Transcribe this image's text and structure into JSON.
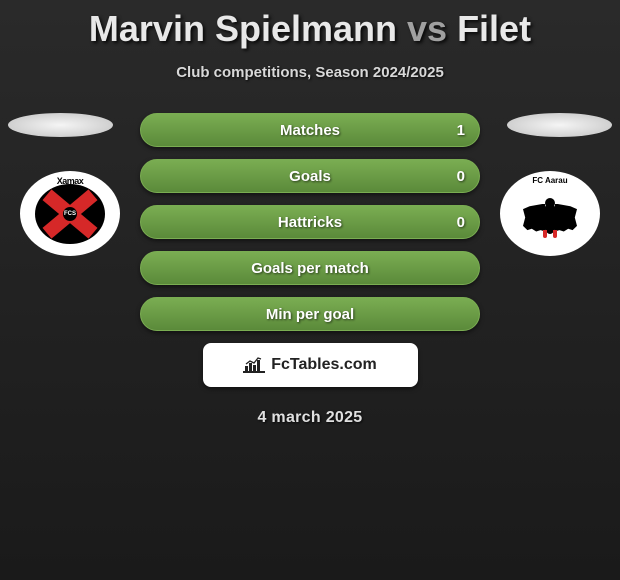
{
  "header": {
    "player1": "Marvin Spielmann",
    "vs": "vs",
    "player2": "Filet",
    "subtitle": "Club competitions, Season 2024/2025"
  },
  "clubs": {
    "left": {
      "name": "Xamax",
      "primary_color": "#d62828",
      "secondary_color": "#000000"
    },
    "right": {
      "name": "FC Aarau",
      "primary_color": "#000000",
      "accent_color": "#d62828"
    }
  },
  "stats": {
    "pill_bg": "#5b8a3a",
    "pill_border": "#7aad52",
    "text_color": "#ffffff",
    "rows": [
      {
        "label": "Matches",
        "left": "",
        "right": "1"
      },
      {
        "label": "Goals",
        "left": "",
        "right": "0"
      },
      {
        "label": "Hattricks",
        "left": "",
        "right": "0"
      },
      {
        "label": "Goals per match",
        "left": "",
        "right": ""
      },
      {
        "label": "Min per goal",
        "left": "",
        "right": ""
      }
    ]
  },
  "branding": {
    "text": "FcTables.com",
    "bg": "#ffffff"
  },
  "date": "4 march 2025",
  "colors": {
    "background_top": "#2a2a2a",
    "background_bottom": "#1a1a1a",
    "title_main": "#e8e8e8",
    "title_vs": "#a0a0a0",
    "subtitle": "#d8d8d8",
    "marker": "#e8e8e8"
  }
}
